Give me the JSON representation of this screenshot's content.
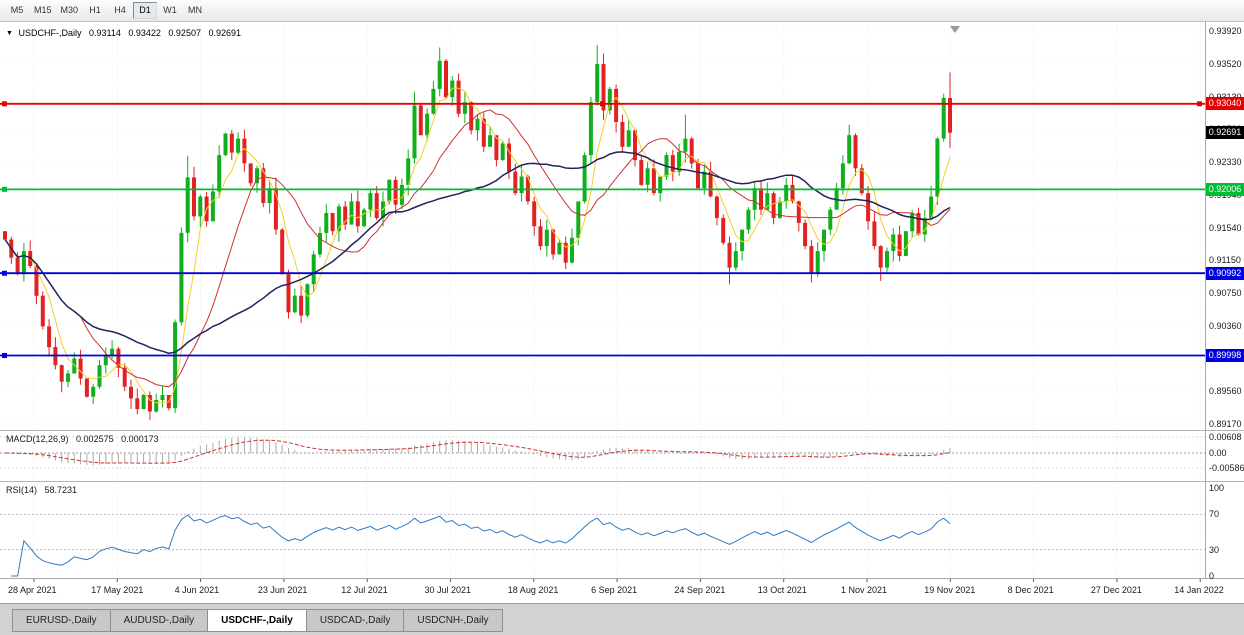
{
  "toolbar": {
    "timeframes": [
      {
        "label": "M5",
        "active": false
      },
      {
        "label": "M15",
        "active": false
      },
      {
        "label": "M30",
        "active": false
      },
      {
        "label": "H1",
        "active": false
      },
      {
        "label": "H4",
        "active": false
      },
      {
        "label": "D1",
        "active": true
      },
      {
        "label": "W1",
        "active": false
      },
      {
        "label": "MN",
        "active": false
      }
    ]
  },
  "chart": {
    "header": {
      "symbol": "USDCHF-,Daily",
      "open": "0.93114",
      "high": "0.93422",
      "low": "0.92507",
      "close": "0.92691"
    },
    "y_axis": [
      "0.93920",
      "0.93520",
      "0.93130",
      "0.92730",
      "0.92330",
      "0.91940",
      "0.91540",
      "0.91150",
      "0.90750",
      "0.90360",
      "0.89960",
      "0.89560",
      "0.89170"
    ],
    "x_axis": [
      "28 Apr 2021",
      "17 May 2021",
      "4 Jun 2021",
      "23 Jun 2021",
      "12 Jul 2021",
      "30 Jul 2021",
      "18 Aug 2021",
      "6 Sep 2021",
      "24 Sep 2021",
      "13 Oct 2021",
      "1 Nov 2021",
      "19 Nov 2021",
      "8 Dec 2021",
      "27 Dec 2021",
      "14 Jan 2022"
    ],
    "hlines": [
      {
        "label": "0.93040",
        "price": 0.9304,
        "color": "#e60000"
      },
      {
        "label": "0.92006",
        "price": 0.92006,
        "color": "#00bb33"
      },
      {
        "label": "0.90992",
        "price": 0.90992,
        "color": "#0000dd"
      },
      {
        "label": "0.89998",
        "price": 0.89998,
        "color": "#0000dd"
      }
    ],
    "current_price": {
      "label": "0.92691",
      "price": 0.92691,
      "color": "#000000"
    }
  },
  "macd": {
    "title": "MACD(12,26,9)",
    "main_value": "0.002575",
    "signal_value": "0.000173",
    "axis": [
      "0.00608",
      "0.00",
      "-0.00586"
    ]
  },
  "rsi": {
    "title": "RSI(14)",
    "value": "58.7231",
    "axis": [
      "100",
      "70",
      "30",
      "0"
    ]
  },
  "tabs": [
    {
      "label": "EURUSD-,Daily",
      "active": false
    },
    {
      "label": "AUDUSD-,Daily",
      "active": false
    },
    {
      "label": "USDCHF-,Daily",
      "active": true
    },
    {
      "label": "USDCAD-,Daily",
      "active": false
    },
    {
      "label": "USDCNH-,Daily",
      "active": false
    }
  ],
  "colors": {
    "bull": "#0faf1e",
    "bear": "#e22222",
    "ma_fast": "#f2cf2a",
    "ma_mid": "#cc3333",
    "ma_slow": "#23235f",
    "macd_hist": "#aaaaaa",
    "macd_signal": "#cc3333",
    "rsi_line": "#2e7bc4",
    "resistance": "#e60000",
    "support_green": "#00bb33",
    "support_blue": "#0000dd"
  },
  "chart_data": {
    "type": "candlestick",
    "symbol": "USDCHF",
    "timeframe": "Daily",
    "last_ohlc": {
      "open": 0.93114,
      "high": 0.93422,
      "low": 0.92507,
      "close": 0.92691
    },
    "y_range": {
      "top": 0.94005,
      "bottom": 0.89095
    },
    "x_labels": [
      "28 Apr 2021",
      "17 May 2021",
      "4 Jun 2021",
      "23 Jun 2021",
      "12 Jul 2021",
      "30 Jul 2021",
      "18 Aug 2021",
      "6 Sep 2021",
      "24 Sep 2021",
      "13 Oct 2021",
      "1 Nov 2021",
      "19 Nov 2021",
      "8 Dec 2021",
      "27 Dec 2021",
      "14 Jan 2022"
    ],
    "hlines": [
      0.9304,
      0.92006,
      0.90992,
      0.89998
    ],
    "first_open": 0.915,
    "closes": [
      0.914,
      0.9118,
      0.9098,
      0.9126,
      0.9108,
      0.9072,
      0.9035,
      0.901,
      0.8988,
      0.8968,
      0.8978,
      0.8996,
      0.8972,
      0.895,
      0.8962,
      0.8988,
      0.9,
      0.9008,
      0.8985,
      0.8962,
      0.8948,
      0.8935,
      0.8952,
      0.8932,
      0.8946,
      0.8952,
      0.8936,
      0.904,
      0.9148,
      0.9215,
      0.9168,
      0.9192,
      0.9162,
      0.9198,
      0.9242,
      0.9268,
      0.9245,
      0.9262,
      0.9232,
      0.9208,
      0.9226,
      0.9184,
      0.9202,
      0.9152,
      0.9098,
      0.9052,
      0.9072,
      0.9048,
      0.9086,
      0.9122,
      0.9148,
      0.9172,
      0.915,
      0.918,
      0.9158,
      0.9186,
      0.9156,
      0.9176,
      0.9196,
      0.9166,
      0.9186,
      0.9212,
      0.9182,
      0.9206,
      0.9238,
      0.9302,
      0.9266,
      0.9292,
      0.9322,
      0.9356,
      0.9312,
      0.9332,
      0.9292,
      0.9306,
      0.9272,
      0.9286,
      0.9252,
      0.9266,
      0.9236,
      0.9256,
      0.9222,
      0.9196,
      0.9216,
      0.9186,
      0.9156,
      0.9132,
      0.9152,
      0.9122,
      0.9136,
      0.9112,
      0.9142,
      0.9186,
      0.9242,
      0.9306,
      0.9352,
      0.9296,
      0.9322,
      0.9282,
      0.9252,
      0.9272,
      0.9236,
      0.9206,
      0.9226,
      0.9196,
      0.9216,
      0.9242,
      0.9222,
      0.9246,
      0.9262,
      0.9232,
      0.9202,
      0.9222,
      0.9192,
      0.9166,
      0.9136,
      0.9106,
      0.9126,
      0.9152,
      0.9176,
      0.9202,
      0.9176,
      0.9196,
      0.9166,
      0.9186,
      0.9206,
      0.9186,
      0.916,
      0.9132,
      0.91,
      0.9126,
      0.9152,
      0.9176,
      0.9202,
      0.9232,
      0.9266,
      0.9226,
      0.9196,
      0.9162,
      0.9132,
      0.9106,
      0.9126,
      0.9146,
      0.912,
      0.915,
      0.9172,
      0.9146,
      0.9166,
      0.9192,
      0.9262,
      0.9311,
      0.9269
    ],
    "wick_overrides": {
      "17": {
        "h": 0.9018
      },
      "23": {
        "l": 0.8922
      },
      "27": {
        "l": 0.893
      },
      "29": {
        "h": 0.9241
      },
      "65": {
        "h": 0.9318
      },
      "69": {
        "h": 0.9372
      },
      "94": {
        "h": 0.9375
      },
      "108": {
        "h": 0.9291
      },
      "115": {
        "l": 0.9086
      },
      "128": {
        "l": 0.9088
      },
      "139": {
        "l": 0.909
      },
      "150": {
        "h": 0.9342,
        "l": 0.9251
      }
    },
    "indicators": {
      "macd": {
        "fast": 12,
        "slow": 26,
        "signal": 9,
        "value": 0.002575,
        "signal_value": 0.000173
      },
      "rsi": {
        "period": 14,
        "value": 58.7231,
        "levels": [
          30,
          70
        ]
      },
      "moving_averages": [
        {
          "period": 5,
          "color": "#f2cf2a"
        },
        {
          "period": 13,
          "color": "#cc3333"
        },
        {
          "period": 34,
          "color": "#23235f"
        }
      ]
    }
  }
}
